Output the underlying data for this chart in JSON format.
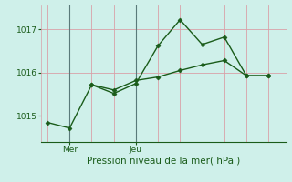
{
  "line1_x": [
    0,
    1,
    2,
    3,
    4,
    5,
    6,
    7,
    8,
    9,
    10
  ],
  "line1_y": [
    1014.85,
    1014.72,
    1015.72,
    1015.52,
    1015.75,
    1016.62,
    1017.22,
    1016.65,
    1016.82,
    1015.93,
    1015.93
  ],
  "line2_x": [
    2,
    3,
    4,
    5,
    6,
    7,
    8,
    9,
    10
  ],
  "line2_y": [
    1015.72,
    1015.6,
    1015.82,
    1015.9,
    1016.05,
    1016.18,
    1016.28,
    1015.93,
    1015.93
  ],
  "line_color": "#1a5c1a",
  "marker": "D",
  "markersize": 2.5,
  "linewidth": 1.0,
  "background_color": "#cff0ea",
  "grid_color": "#d9a0a8",
  "xlabel": "Pression niveau de la mer( hPa )",
  "xlabel_color": "#1a5c1a",
  "ylabel_ticks": [
    1015,
    1016,
    1017
  ],
  "tick_color": "#1a5c1a",
  "xtick_labels": [
    "Mer",
    "Jeu"
  ],
  "xtick_positions": [
    1,
    4
  ],
  "vline_color": "#5a7a7a",
  "ylim": [
    1014.4,
    1017.55
  ],
  "xlim": [
    -0.3,
    10.8
  ]
}
